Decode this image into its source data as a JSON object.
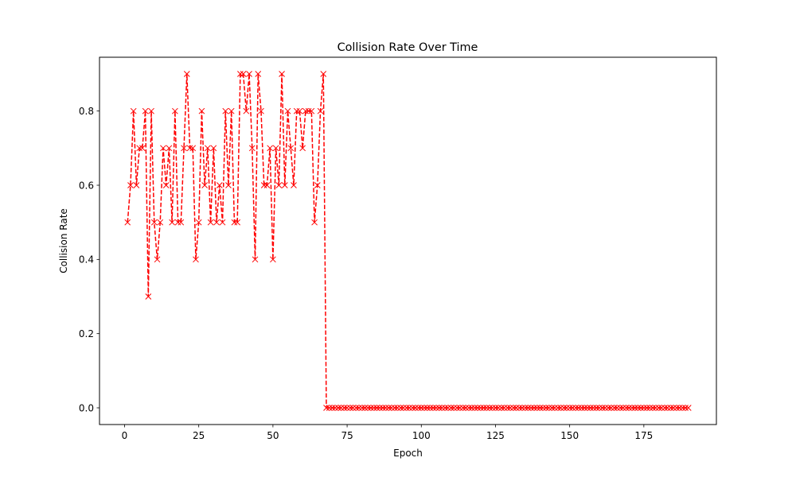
{
  "chart_data": {
    "type": "line",
    "title": "Collision Rate Over Time",
    "xlabel": "Epoch",
    "ylabel": "Collision Rate",
    "xlim": [
      -8.45,
      199.45
    ],
    "ylim": [
      -0.045,
      0.945
    ],
    "xticks": [
      0,
      25,
      50,
      75,
      100,
      125,
      150,
      175
    ],
    "xtick_labels": [
      "0",
      "25",
      "50",
      "75",
      "100",
      "125",
      "150",
      "175"
    ],
    "yticks": [
      0.0,
      0.2,
      0.4,
      0.6,
      0.8
    ],
    "ytick_labels": [
      "0.0",
      "0.2",
      "0.4",
      "0.6",
      "0.8"
    ],
    "grid": false,
    "series": [
      {
        "color": "#ff0000",
        "line_style": "dashed",
        "marker": "x",
        "x_start": 1,
        "x_end": 190,
        "values": [
          0.5,
          0.6,
          0.8,
          0.6,
          0.7,
          0.7,
          0.8,
          0.3,
          0.8,
          0.5,
          0.4,
          0.5,
          0.7,
          0.6,
          0.7,
          0.5,
          0.8,
          0.5,
          0.5,
          0.7,
          0.9,
          0.7,
          0.7,
          0.4,
          0.5,
          0.8,
          0.6,
          0.7,
          0.5,
          0.7,
          0.5,
          0.6,
          0.5,
          0.8,
          0.6,
          0.8,
          0.5,
          0.5,
          0.9,
          0.9,
          0.8,
          0.9,
          0.7,
          0.4,
          0.9,
          0.8,
          0.6,
          0.6,
          0.7,
          0.4,
          0.7,
          0.6,
          0.9,
          0.6,
          0.8,
          0.7,
          0.6,
          0.8,
          0.8,
          0.7,
          0.8,
          0.8,
          0.8,
          0.5,
          0.6,
          0.8,
          0.9,
          0.0,
          0.0,
          0.0,
          0.0,
          0.0,
          0.0,
          0.0,
          0.0,
          0.0,
          0.0,
          0.0,
          0.0,
          0.0,
          0.0,
          0.0,
          0.0,
          0.0,
          0.0,
          0.0,
          0.0,
          0.0,
          0.0,
          0.0,
          0.0,
          0.0,
          0.0,
          0.0,
          0.0,
          0.0,
          0.0,
          0.0,
          0.0,
          0.0,
          0.0,
          0.0,
          0.0,
          0.0,
          0.0,
          0.0,
          0.0,
          0.0,
          0.0,
          0.0,
          0.0,
          0.0,
          0.0,
          0.0,
          0.0,
          0.0,
          0.0,
          0.0,
          0.0,
          0.0,
          0.0,
          0.0,
          0.0,
          0.0,
          0.0,
          0.0,
          0.0,
          0.0,
          0.0,
          0.0,
          0.0,
          0.0,
          0.0,
          0.0,
          0.0,
          0.0,
          0.0,
          0.0,
          0.0,
          0.0,
          0.0,
          0.0,
          0.0,
          0.0,
          0.0,
          0.0,
          0.0,
          0.0,
          0.0,
          0.0,
          0.0,
          0.0,
          0.0,
          0.0,
          0.0,
          0.0,
          0.0,
          0.0,
          0.0,
          0.0,
          0.0,
          0.0,
          0.0,
          0.0,
          0.0,
          0.0,
          0.0,
          0.0,
          0.0,
          0.0,
          0.0,
          0.0,
          0.0,
          0.0,
          0.0,
          0.0,
          0.0,
          0.0,
          0.0,
          0.0,
          0.0,
          0.0,
          0.0,
          0.0,
          0.0,
          0.0,
          0.0,
          0.0,
          0.0,
          0.0
        ]
      }
    ]
  }
}
